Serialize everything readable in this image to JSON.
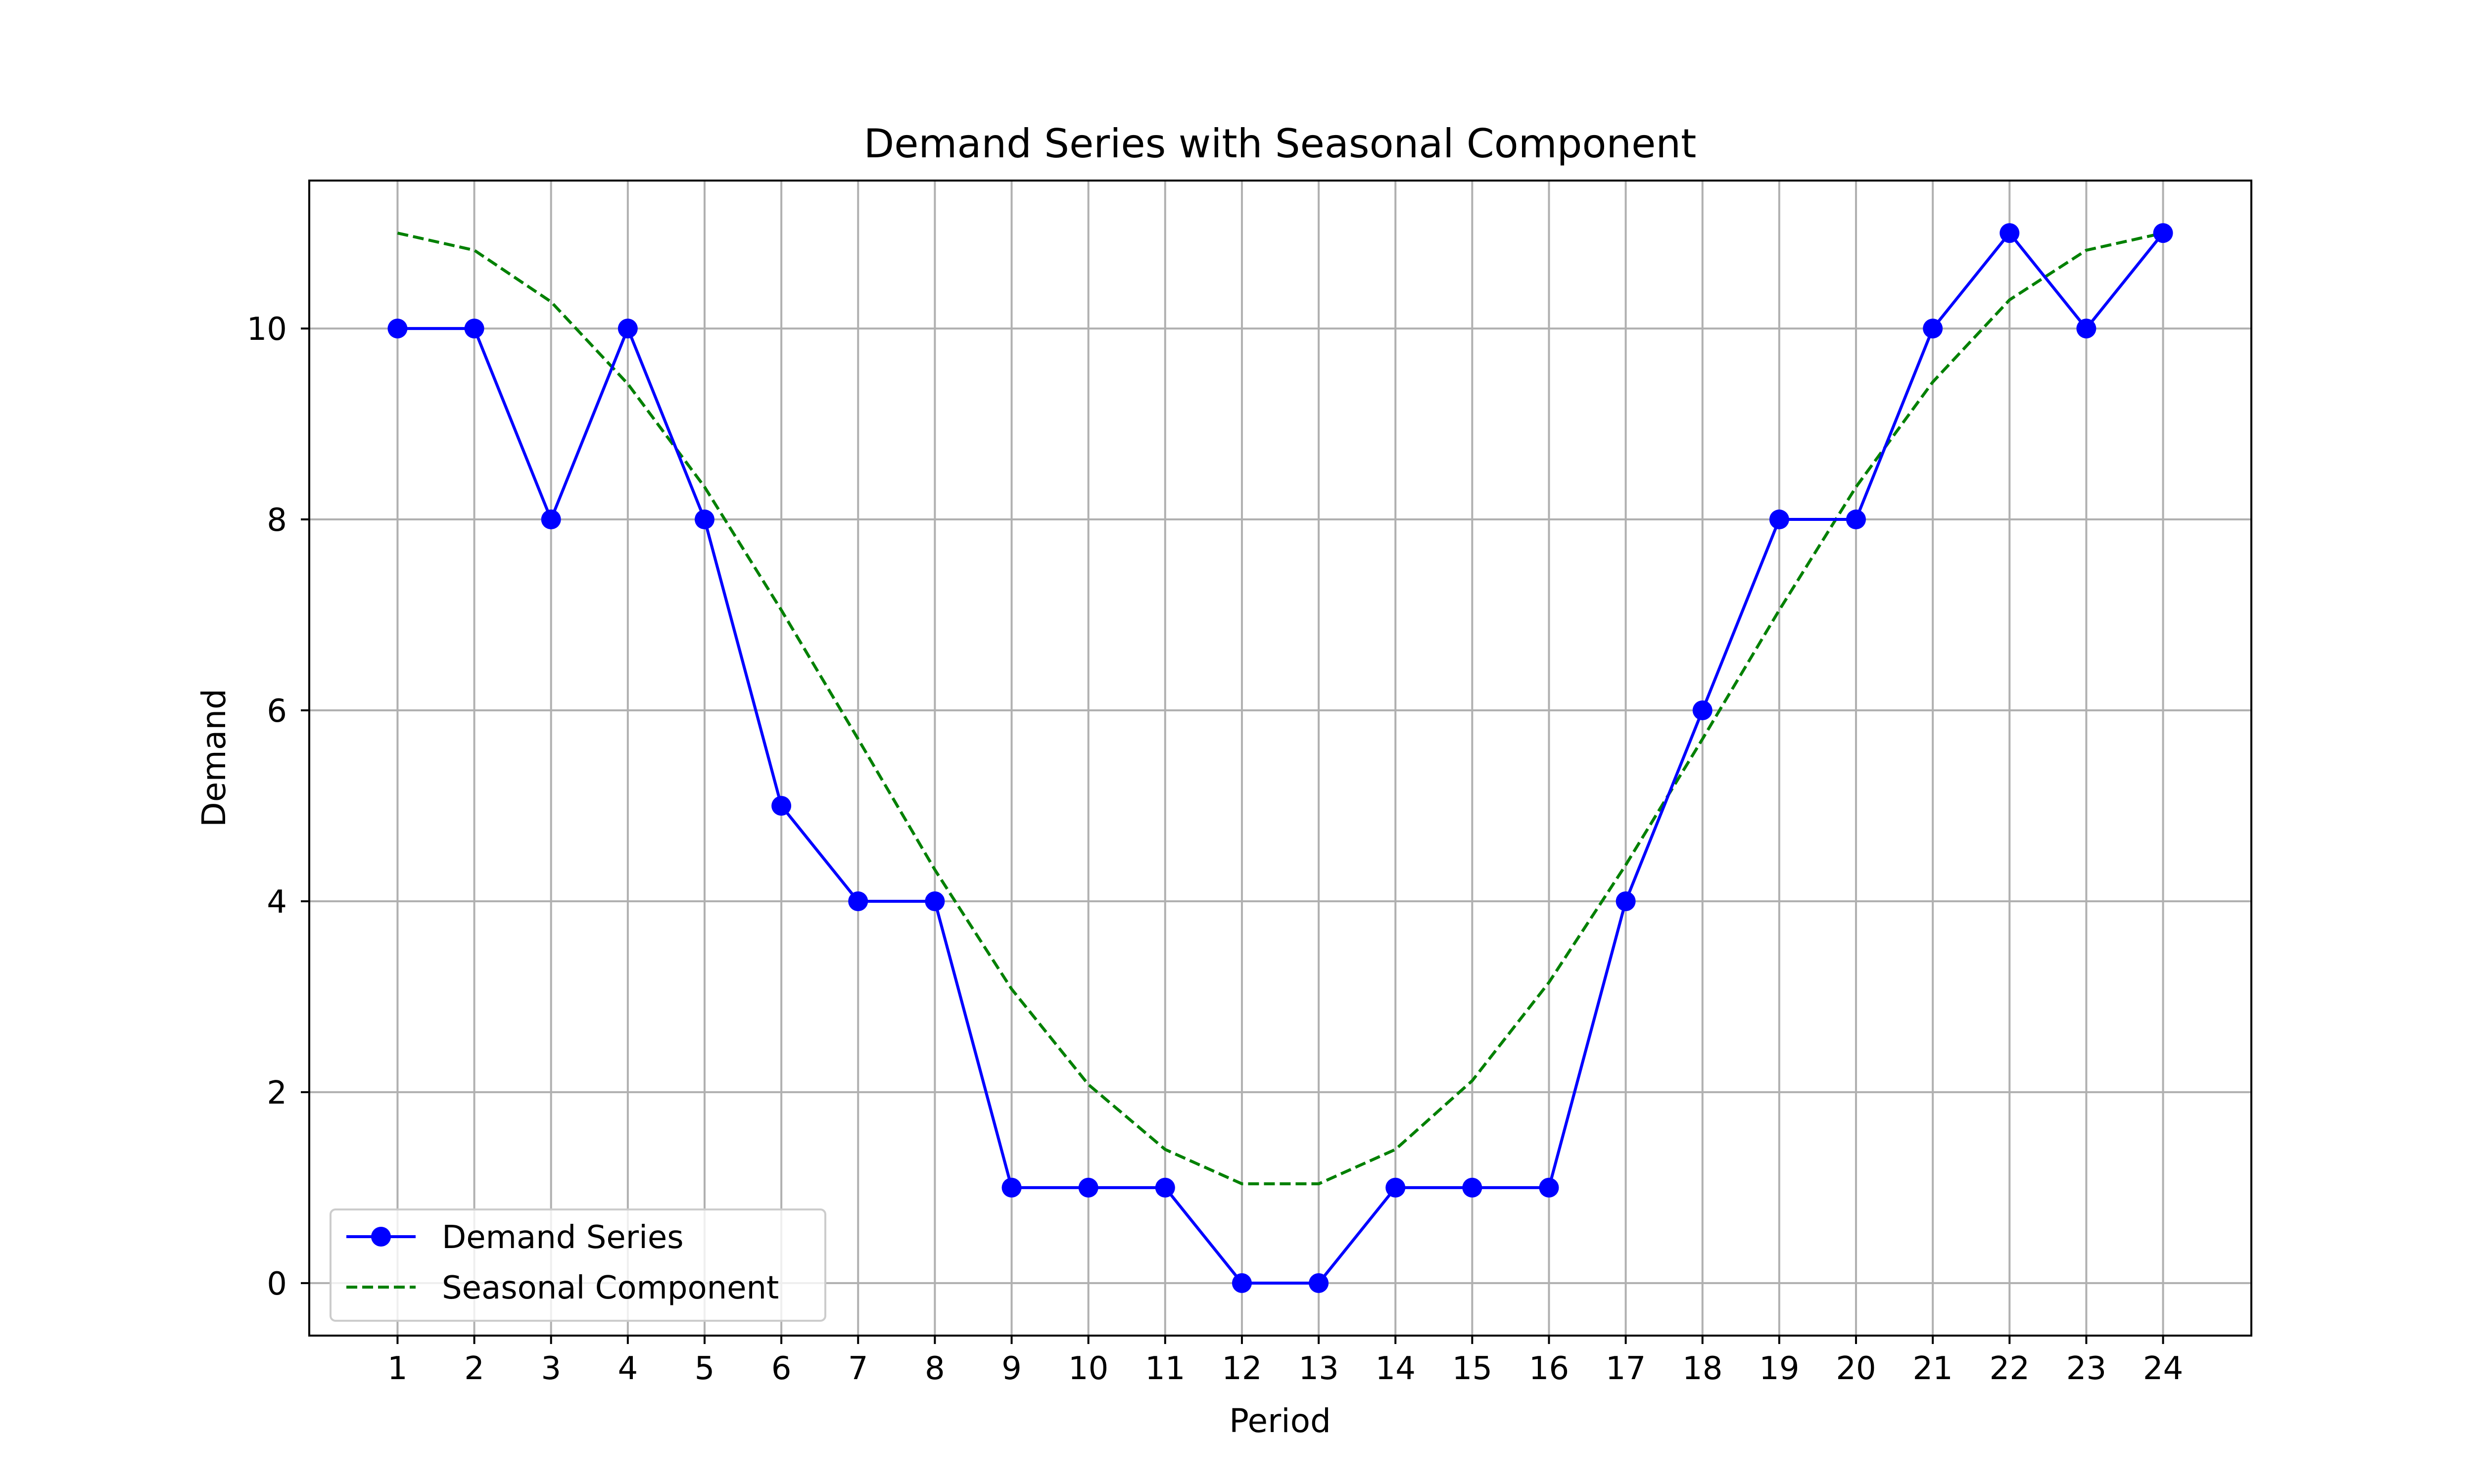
{
  "chart_data": {
    "type": "line",
    "title": "Demand Series with Seasonal Component",
    "xlabel": "Period",
    "ylabel": "Demand",
    "x": [
      1,
      2,
      3,
      4,
      5,
      6,
      7,
      8,
      9,
      10,
      11,
      12,
      13,
      14,
      15,
      16,
      17,
      18,
      19,
      20,
      21,
      22,
      23,
      24
    ],
    "xlim": [
      -0.15,
      25.15
    ],
    "ylim": [
      -0.55,
      11.55
    ],
    "yticks": [
      0,
      2,
      4,
      6,
      8,
      10
    ],
    "grid": true,
    "legend_position": "lower-left",
    "series": [
      {
        "name": "Demand Series",
        "style": "solid line with circle markers",
        "color": "#0000ff",
        "values": [
          10,
          10,
          8,
          10,
          8,
          5,
          4,
          4,
          1,
          1,
          1,
          0,
          0,
          1,
          1,
          1,
          4,
          6,
          8,
          8,
          10,
          11,
          10,
          11
        ]
      },
      {
        "name": "Seasonal Component",
        "style": "dashed line",
        "color": "#008000",
        "values": [
          11,
          10.82,
          10.28,
          9.42,
          8.34,
          7.05,
          5.7,
          4.33,
          3.08,
          2.08,
          1.4,
          1.04,
          1.04,
          1.4,
          2.12,
          3.15,
          4.38,
          5.7,
          7.05,
          8.34,
          9.44,
          10.3,
          10.82,
          11
        ]
      }
    ]
  }
}
